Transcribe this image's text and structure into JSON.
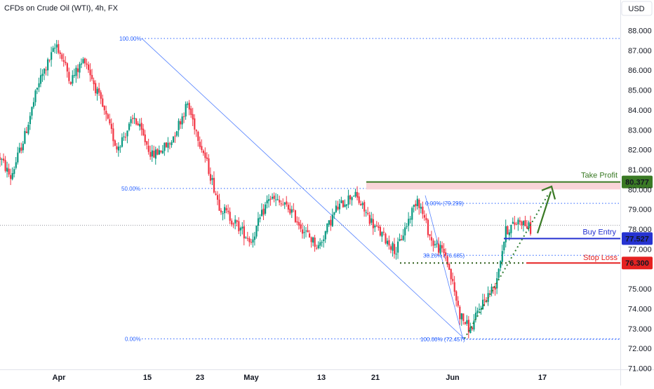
{
  "header": {
    "title": "CFDs on Crude Oil (WTI), 4h, FX",
    "currency": "USD"
  },
  "colors": {
    "up": "#089981",
    "down": "#f23645",
    "tp": "#3a7a25",
    "entry": "#2633d1",
    "sl": "#e52222",
    "fib": "#2962ff"
  },
  "chart_data": {
    "type": "candlestick",
    "ylim": [
      71.0,
      88.6
    ],
    "ylabel": "USD",
    "y_ticks": [
      "88.000",
      "87.000",
      "86.000",
      "85.000",
      "84.000",
      "83.000",
      "82.000",
      "81.000",
      "80.000",
      "79.000",
      "78.000",
      "77.000",
      "75.000",
      "74.000",
      "73.000",
      "72.000",
      "71.000"
    ],
    "x_ticks": [
      "Apr",
      "15",
      "23",
      "May",
      "13",
      "21",
      "Jun",
      "17"
    ],
    "anchors": [
      [
        0,
        81.6
      ],
      [
        6,
        80.6
      ],
      [
        14,
        82.7
      ],
      [
        22,
        85.4
      ],
      [
        32,
        87.3
      ],
      [
        40,
        85.5
      ],
      [
        48,
        86.6
      ],
      [
        58,
        84.1
      ],
      [
        66,
        82.1
      ],
      [
        76,
        83.6
      ],
      [
        86,
        81.7
      ],
      [
        96,
        82.3
      ],
      [
        106,
        84.3
      ],
      [
        116,
        81.6
      ],
      [
        124,
        79.2
      ],
      [
        132,
        78.4
      ],
      [
        142,
        77.4
      ],
      [
        152,
        79.6
      ],
      [
        164,
        79.0
      ],
      [
        172,
        77.9
      ],
      [
        180,
        77.1
      ],
      [
        190,
        79.0
      ],
      [
        200,
        79.8
      ],
      [
        212,
        78.1
      ],
      [
        224,
        76.9
      ],
      [
        232,
        78.7
      ],
      [
        236,
        79.6
      ],
      [
        244,
        77.4
      ],
      [
        252,
        76.7
      ],
      [
        260,
        73.7
      ],
      [
        266,
        72.9
      ],
      [
        272,
        74.2
      ],
      [
        280,
        75.2
      ],
      [
        286,
        77.9
      ],
      [
        294,
        78.5
      ],
      [
        300,
        78.0
      ]
    ],
    "fib_levels": [
      {
        "label": "100.00%",
        "value": 87.6
      },
      {
        "label": "50.00%",
        "value": 80.05
      },
      {
        "label": "0.00%",
        "value": 72.48
      },
      {
        "label": "0.00% (79.299)",
        "value": 79.299
      },
      {
        "label": "38.20% (76.685)",
        "value": 76.685
      },
      {
        "label": "100.00% (72.457)",
        "value": 72.457
      }
    ],
    "last_price_line": 78.2,
    "levels": [
      {
        "name": "Take Profit",
        "value": 80.377,
        "badge": "80.377"
      },
      {
        "name": "Buy Entry",
        "value": 77.527,
        "badge": "77.527"
      },
      {
        "name": "Stop Loss",
        "value": 76.3,
        "badge": "76.300"
      }
    ],
    "support_line": 76.3
  }
}
